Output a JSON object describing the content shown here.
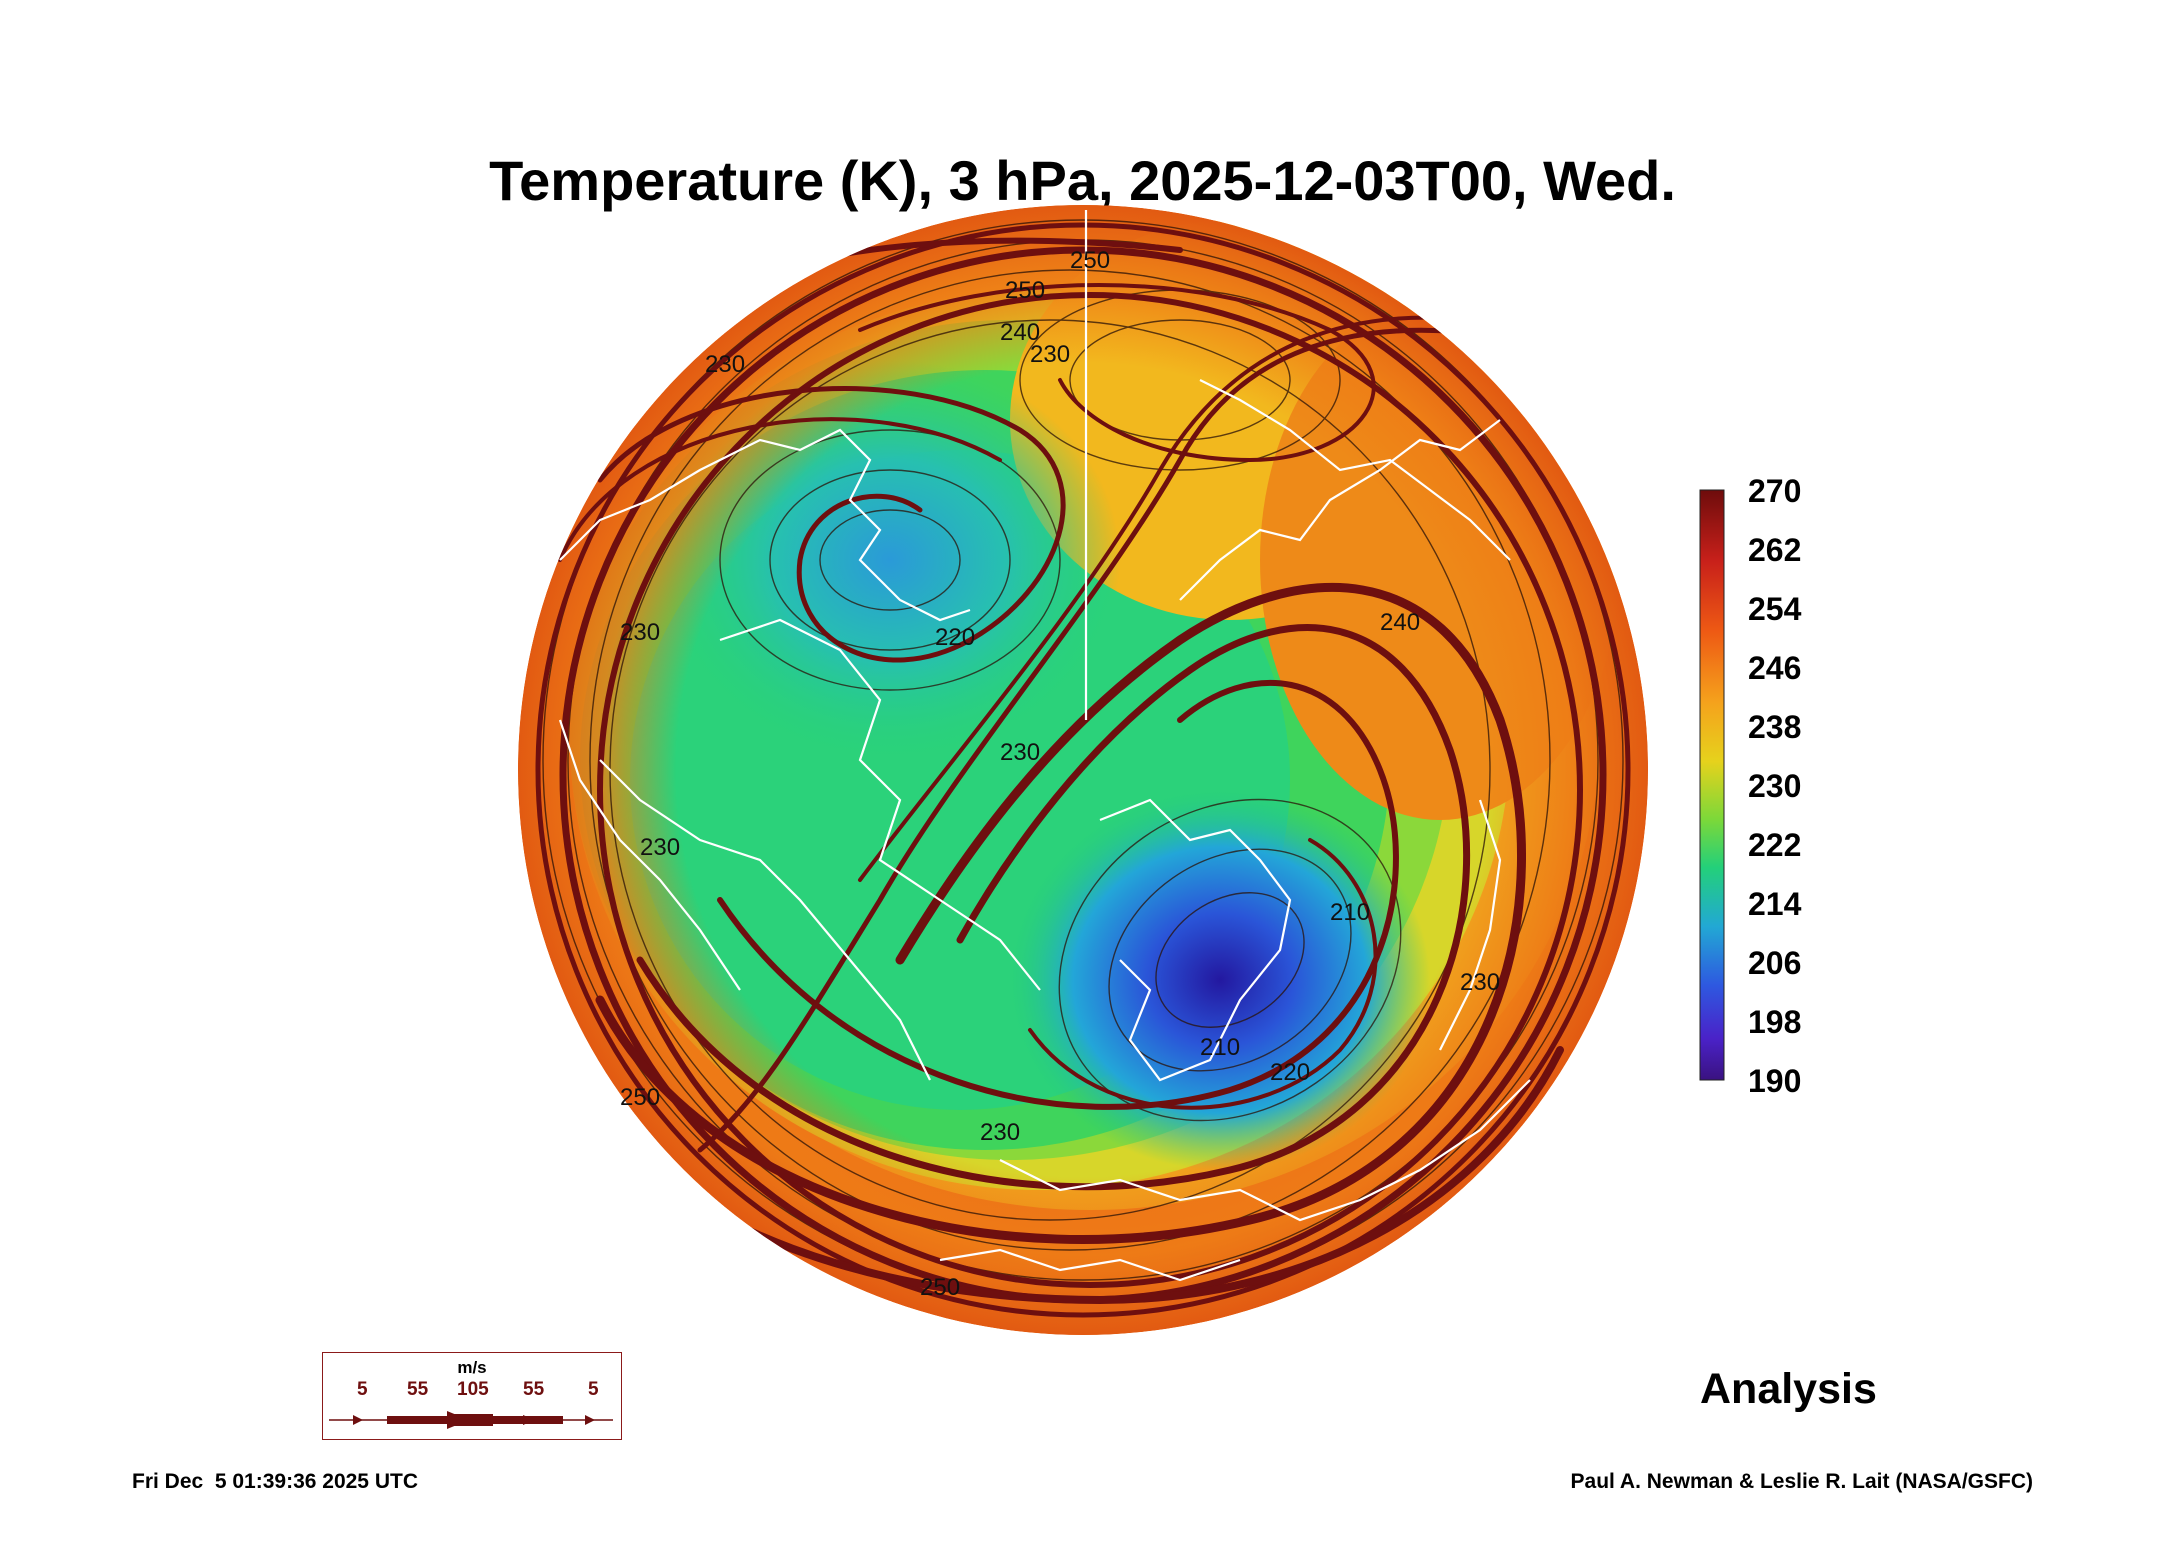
{
  "title": "Temperature (K), 3 hPa, 2025-12-03T00, Wed.",
  "colorbar": {
    "labels": [
      "270",
      "262",
      "254",
      "246",
      "238",
      "230",
      "222",
      "214",
      "206",
      "198",
      "190"
    ],
    "min": 190,
    "max": 270
  },
  "contour_labels": [
    "250",
    "250",
    "240",
    "230",
    "230",
    "230",
    "230",
    "220",
    "230",
    "240",
    "230",
    "250",
    "250",
    "220",
    "210",
    "230",
    "210"
  ],
  "wind_legend": {
    "unit": "m/s",
    "values": [
      "5",
      "55",
      "105",
      "55",
      "5"
    ]
  },
  "analysis_label": "Analysis",
  "timestamp": "Fri Dec  5 01:39:36 2025 UTC",
  "credit": "Paul A. Newman & Leslie R. Lait (NASA/GSFC)",
  "colors": {
    "cold": "#2a1a9a",
    "cool": "#2f8bd8",
    "mild": "#2ad27a",
    "warm": "#f2c21a",
    "hot": "#ec6a14",
    "streamline": "#6e0f0f",
    "coast": "#ffffff"
  }
}
